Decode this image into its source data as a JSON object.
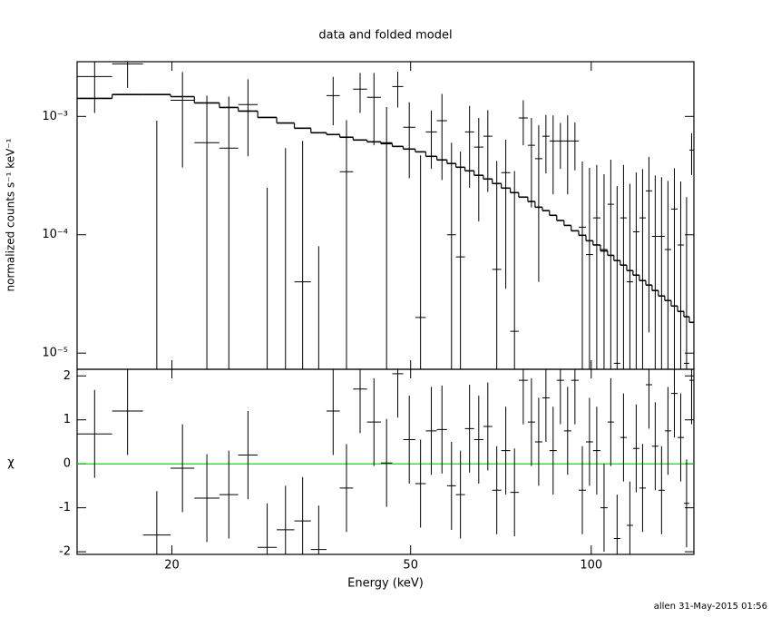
{
  "chart_data": [
    {
      "type": "spectrum",
      "title": "data and folded model",
      "y_label": "normalized counts s⁻¹ keV⁻¹",
      "x_log": true,
      "y_log": true,
      "xlim": [
        13.9,
        148.3
      ],
      "ylim": [
        7.3e-06,
        0.0029
      ],
      "yticks": [
        {
          "value": 1e-05,
          "label": "10⁻⁵"
        },
        {
          "value": 0.0001,
          "label": "10⁻⁴"
        },
        {
          "value": 0.001,
          "label": "10⁻³"
        }
      ],
      "bins": [
        13.9,
        15.9,
        17.9,
        19.9,
        21.8,
        24.0,
        25.8,
        27.8,
        29.9,
        32.0,
        34.1,
        36.2,
        38.1,
        40.1,
        42.3,
        44.6,
        46.6,
        48.6,
        50.9,
        53.0,
        55.3,
        57.5,
        59.5,
        61.6,
        63.8,
        66.1,
        68.4,
        70.8,
        73.3,
        75.7,
        78.4,
        80.6,
        82.9,
        85.2,
        87.6,
        90.1,
        92.6,
        95.3,
        98.0,
        100.7,
        103.6,
        106.5,
        109.1,
        111.8,
        114.6,
        117.4,
        120.3,
        123.3,
        126.3,
        129.4,
        132.6,
        135.9,
        139.3,
        142.7,
        145.7,
        148.3
      ],
      "data": {
        "color": "#000000",
        "values": [
          0.00217,
          0.00278,
          -6e-05,
          0.00137,
          0.0006,
          0.00054,
          0.00126,
          -0.00056,
          -0.00014,
          4e-05,
          -0.0006,
          0.0015,
          0.000341,
          0.0017,
          0.00145,
          0.0006,
          0.00179,
          0.00081,
          2e-05,
          0.00074,
          0.00092,
          0.0001,
          6.5e-05,
          0.00074,
          0.00055,
          0.00068,
          5.1e-05,
          0.000335,
          1.53e-05,
          0.00097,
          0.00057,
          0.00044,
          0.00068,
          0.00062,
          0.00062,
          0.00062,
          0.00062,
          0.000116,
          6.8e-05,
          0.000139,
          7.5e-05,
          0.000181,
          8.2e-06,
          0.000139,
          4e-05,
          0.000106,
          0.000139,
          0.000235,
          9.7e-05,
          9.7e-05,
          7.5e-05,
          0.000165,
          8.2e-05,
          8.2e-06,
          0.00052
        ],
        "errors": [
          0.0011,
          0.00104,
          0.00098,
          0.001,
          0.0009,
          0.00093,
          0.0008,
          0.00081,
          0.00068,
          0.00058,
          0.00068,
          0.00066,
          0.00059,
          0.00063,
          0.00088,
          0.0006,
          0.0006,
          0.00051,
          0.00045,
          0.00038,
          0.00063,
          0.0005,
          0.00044,
          0.00049,
          0.00042,
          0.00045,
          0.00037,
          0.0003,
          0.00033,
          0.0004,
          0.0004,
          0.0004,
          0.00035,
          0.0004,
          0.00026,
          0.0004,
          0.00027,
          0.0003,
          0.0003,
          0.00025,
          0.00025,
          0.00025,
          0.00025,
          0.00025,
          0.00023,
          0.00023,
          0.00022,
          0.00022,
          0.00022,
          0.00021,
          0.00021,
          0.0002,
          0.0002,
          0.0002,
          0.0002
        ]
      },
      "model": {
        "color": "#000000",
        "values": [
          0.00142,
          0.00153,
          0.00153,
          0.00147,
          0.0013,
          0.00119,
          0.00111,
          0.00098,
          0.00088,
          0.000795,
          0.000728,
          0.000703,
          0.000667,
          0.000632,
          0.00061,
          0.000589,
          0.000558,
          0.00053,
          0.000502,
          0.00046,
          0.000429,
          0.0004,
          0.000372,
          0.000347,
          0.000318,
          0.000296,
          0.000271,
          0.000248,
          0.000227,
          0.000208,
          0.000191,
          0.000171,
          0.00016,
          0.000146,
          0.000132,
          0.00012,
          0.000108,
          9.9e-05,
          8.9e-05,
          8.2e-05,
          7.3e-05,
          6.7e-05,
          6.05e-05,
          5.54e-05,
          4.98e-05,
          4.56e-05,
          4.1e-05,
          3.76e-05,
          3.38e-05,
          3.04e-05,
          2.78e-05,
          2.5e-05,
          2.25e-05,
          2.03e-05,
          1.82e-05
        ]
      }
    },
    {
      "type": "residuals",
      "x_label": "Energy (keV)",
      "y_label": "χ",
      "x_log": true,
      "xlim": [
        13.9,
        148.3
      ],
      "xticks": [
        20,
        50,
        100
      ],
      "ylim": [
        -2.06,
        2.15
      ],
      "yticks": [
        -2,
        -1,
        0,
        1,
        2
      ],
      "zero_line": 0,
      "zero_line_color": "#00cc00",
      "color": "#000000",
      "error": 1,
      "values": [
        0.68,
        1.2,
        -1.62,
        -0.1,
        -0.78,
        -0.7,
        0.2,
        -1.9,
        -1.5,
        -1.3,
        -1.95,
        1.2,
        -0.55,
        1.7,
        0.95,
        0.02,
        2.05,
        0.55,
        -0.45,
        0.75,
        0.78,
        -0.5,
        -0.7,
        0.8,
        0.55,
        0.85,
        -0.6,
        0.3,
        -0.65,
        1.9,
        0.95,
        0.5,
        1.5,
        0.3,
        1.9,
        0.75,
        1.9,
        -0.6,
        0.5,
        0.3,
        -1.0,
        0.95,
        -1.7,
        0.6,
        -1.4,
        0.35,
        -0.55,
        1.8,
        0.4,
        -0.6,
        0.75,
        1.6,
        0.6,
        -0.9,
        1.9
      ]
    }
  ],
  "footer": "allen 31-May-2015 01:56"
}
